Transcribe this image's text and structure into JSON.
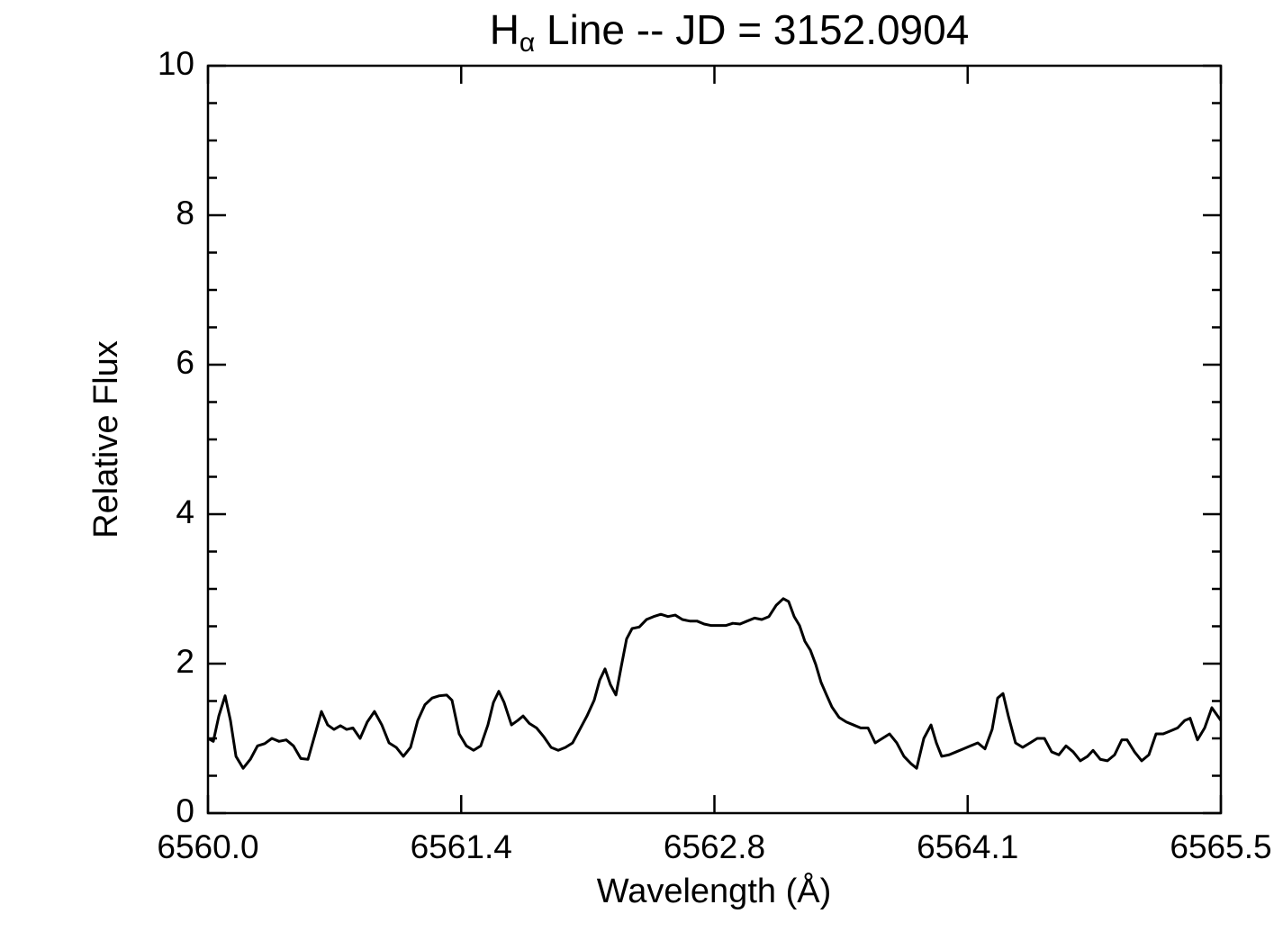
{
  "chart_data": {
    "type": "line",
    "title": {
      "main": "H",
      "subscript": "α",
      "rest": " Line -- JD = 3152.0904"
    },
    "x_label": "Wavelength (Å)",
    "y_label": "Relative Flux",
    "color": "#000000",
    "xlim": [
      6560.0,
      6565.5
    ],
    "xticks": [
      {
        "value": 6560.0,
        "label": "6560.0"
      },
      {
        "value": 6561.375,
        "label": "6561.4"
      },
      {
        "value": 6562.75,
        "label": "6562.8"
      },
      {
        "value": 6564.125,
        "label": "6564.1"
      },
      {
        "value": 6565.5,
        "label": "6565.5"
      }
    ],
    "ylim": [
      0,
      10
    ],
    "yticks": [
      0,
      2,
      4,
      6,
      8,
      10
    ],
    "yminorticks": [
      0.5,
      1,
      1.5,
      2.5,
      3,
      3.5,
      4.5,
      5,
      5.5,
      6.5,
      7,
      7.5,
      8.5,
      9,
      9.5
    ],
    "x": [
      6560.0,
      6560.029,
      6560.059,
      6560.093,
      6560.122,
      6560.152,
      6560.191,
      6560.23,
      6560.269,
      6560.308,
      6560.347,
      6560.386,
      6560.425,
      6560.464,
      6560.504,
      6560.543,
      6560.582,
      6560.616,
      6560.65,
      6560.684,
      6560.719,
      6560.753,
      6560.787,
      6560.826,
      6560.865,
      6560.904,
      6560.944,
      6560.983,
      6561.022,
      6561.061,
      6561.1,
      6561.139,
      6561.178,
      6561.217,
      6561.256,
      6561.296,
      6561.325,
      6561.364,
      6561.403,
      6561.442,
      6561.481,
      6561.52,
      6561.55,
      6561.579,
      6561.608,
      6561.648,
      6561.682,
      6561.711,
      6561.745,
      6561.784,
      6561.824,
      6561.863,
      6561.902,
      6561.941,
      6561.98,
      6562.019,
      6562.058,
      6562.097,
      6562.127,
      6562.156,
      6562.185,
      6562.215,
      6562.244,
      6562.273,
      6562.303,
      6562.342,
      6562.381,
      6562.42,
      6562.459,
      6562.498,
      6562.537,
      6562.576,
      6562.616,
      6562.655,
      6562.694,
      6562.733,
      6562.772,
      6562.811,
      6562.85,
      6562.889,
      6562.928,
      6562.968,
      6563.007,
      6563.046,
      6563.085,
      6563.124,
      6563.153,
      6563.183,
      6563.212,
      6563.241,
      6563.271,
      6563.3,
      6563.329,
      6563.359,
      6563.388,
      6563.427,
      6563.466,
      6563.505,
      6563.544,
      6563.584,
      6563.623,
      6563.662,
      6563.701,
      6563.74,
      6563.779,
      6563.818,
      6563.848,
      6563.887,
      6563.926,
      6563.955,
      6563.984,
      6564.024,
      6564.063,
      6564.102,
      6564.141,
      6564.18,
      6564.219,
      6564.258,
      6564.288,
      6564.317,
      6564.346,
      6564.385,
      6564.424,
      6564.464,
      6564.503,
      6564.542,
      6564.581,
      6564.62,
      6564.659,
      6564.698,
      6564.737,
      6564.776,
      6564.806,
      6564.845,
      6564.884,
      6564.923,
      6564.962,
      6564.991,
      6565.031,
      6565.07,
      6565.109,
      6565.148,
      6565.187,
      6565.226,
      6565.265,
      6565.304,
      6565.333,
      6565.373,
      6565.412,
      6565.451,
      6565.5
    ],
    "values": [
      1.0,
      0.96,
      1.3,
      1.57,
      1.24,
      0.76,
      0.6,
      0.72,
      0.9,
      0.93,
      1.0,
      0.96,
      0.98,
      0.9,
      0.73,
      0.72,
      1.06,
      1.36,
      1.18,
      1.12,
      1.17,
      1.12,
      1.14,
      1.0,
      1.22,
      1.36,
      1.18,
      0.94,
      0.88,
      0.76,
      0.88,
      1.24,
      1.45,
      1.54,
      1.57,
      1.58,
      1.51,
      1.06,
      0.9,
      0.84,
      0.9,
      1.18,
      1.48,
      1.63,
      1.48,
      1.18,
      1.24,
      1.3,
      1.2,
      1.14,
      1.02,
      0.88,
      0.84,
      0.88,
      0.94,
      1.12,
      1.3,
      1.51,
      1.78,
      1.93,
      1.72,
      1.58,
      1.96,
      2.33,
      2.47,
      2.49,
      2.59,
      2.63,
      2.66,
      2.63,
      2.65,
      2.59,
      2.57,
      2.57,
      2.53,
      2.51,
      2.51,
      2.51,
      2.54,
      2.53,
      2.57,
      2.61,
      2.59,
      2.63,
      2.78,
      2.87,
      2.83,
      2.63,
      2.51,
      2.3,
      2.18,
      1.99,
      1.75,
      1.58,
      1.42,
      1.28,
      1.22,
      1.18,
      1.14,
      1.14,
      0.94,
      1.0,
      1.06,
      0.94,
      0.76,
      0.66,
      0.6,
      1.0,
      1.18,
      0.94,
      0.76,
      0.78,
      0.82,
      0.86,
      0.9,
      0.94,
      0.86,
      1.12,
      1.54,
      1.6,
      1.3,
      0.94,
      0.88,
      0.94,
      1.0,
      1.0,
      0.82,
      0.78,
      0.9,
      0.82,
      0.7,
      0.76,
      0.84,
      0.72,
      0.7,
      0.78,
      0.98,
      0.98,
      0.82,
      0.7,
      0.78,
      1.06,
      1.06,
      1.1,
      1.14,
      1.24,
      1.27,
      0.98,
      1.14,
      1.41,
      1.24
    ]
  }
}
